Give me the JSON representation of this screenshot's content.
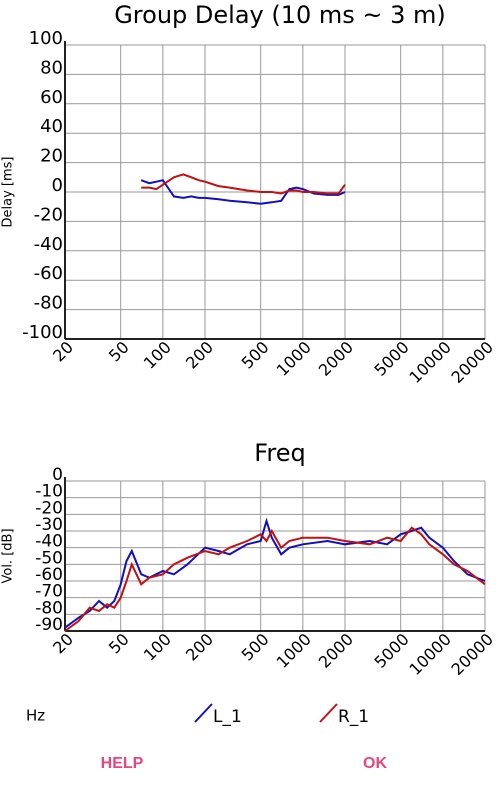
{
  "chart_data": [
    {
      "type": "line",
      "title": "Group Delay (10 ms ~ 3 m)",
      "ylabel": "Delay [ms]",
      "xlog": true,
      "grid": true,
      "xlim": [
        20,
        20000
      ],
      "xticks": [
        20,
        50,
        100,
        200,
        500,
        1000,
        2000,
        5000,
        10000,
        20000
      ],
      "ylim": [
        -100,
        100
      ],
      "yticks": [
        -100,
        -80,
        -60,
        -40,
        -20,
        0,
        20,
        40,
        60,
        80,
        100
      ],
      "x": [
        70,
        80,
        90,
        100,
        120,
        140,
        160,
        180,
        200,
        250,
        300,
        400,
        500,
        600,
        700,
        800,
        900,
        1000,
        1200,
        1500,
        1800,
        2000
      ],
      "series": [
        {
          "color": "#1010c0",
          "values": [
            8,
            6,
            7,
            8,
            -3,
            -4,
            -3,
            -4,
            -4,
            -5,
            -6,
            -7,
            -8,
            -7,
            -6,
            2,
            3,
            2,
            -1,
            -2,
            -2,
            0
          ]
        },
        {
          "color": "#c01010",
          "values": [
            3,
            3,
            2,
            5,
            10,
            12,
            10,
            8,
            7,
            4,
            3,
            1,
            0,
            0,
            -1,
            1,
            1,
            0,
            0,
            -1,
            -1,
            5
          ]
        }
      ]
    },
    {
      "type": "line",
      "title": "Freq",
      "ylabel": "Vol. [dB]",
      "xlabel": "Hz",
      "xlog": true,
      "grid": true,
      "xlim": [
        20,
        20000
      ],
      "xticks": [
        20,
        50,
        100,
        200,
        500,
        1000,
        2000,
        5000,
        10000,
        20000
      ],
      "ylim": [
        -90,
        0
      ],
      "yticks": [
        -90,
        -80,
        -70,
        -60,
        -50,
        -40,
        -30,
        -20,
        -10,
        0
      ],
      "x": [
        20,
        25,
        30,
        35,
        40,
        45,
        50,
        55,
        60,
        70,
        80,
        100,
        120,
        150,
        200,
        250,
        300,
        400,
        500,
        550,
        600,
        700,
        800,
        1000,
        1500,
        2000,
        3000,
        4000,
        5000,
        6000,
        7000,
        8000,
        10000,
        12000,
        15000,
        20000
      ],
      "series": [
        {
          "name": "L_1",
          "color": "#1010c0",
          "values": [
            -88,
            -82,
            -78,
            -72,
            -76,
            -72,
            -62,
            -48,
            -42,
            -56,
            -58,
            -54,
            -56,
            -50,
            -40,
            -42,
            -44,
            -38,
            -36,
            -24,
            -34,
            -44,
            -40,
            -38,
            -36,
            -38,
            -36,
            -38,
            -32,
            -30,
            -28,
            -34,
            -40,
            -48,
            -56,
            -60
          ]
        },
        {
          "name": "R_1",
          "color": "#c01010",
          "values": [
            -90,
            -84,
            -76,
            -78,
            -74,
            -76,
            -70,
            -60,
            -50,
            -62,
            -58,
            -56,
            -50,
            -46,
            -42,
            -44,
            -40,
            -36,
            -32,
            -36,
            -30,
            -40,
            -36,
            -34,
            -34,
            -36,
            -38,
            -34,
            -36,
            -28,
            -32,
            -38,
            -44,
            -50,
            -54,
            -62
          ]
        }
      ]
    }
  ],
  "buttons": [
    "HELP",
    "OK"
  ]
}
